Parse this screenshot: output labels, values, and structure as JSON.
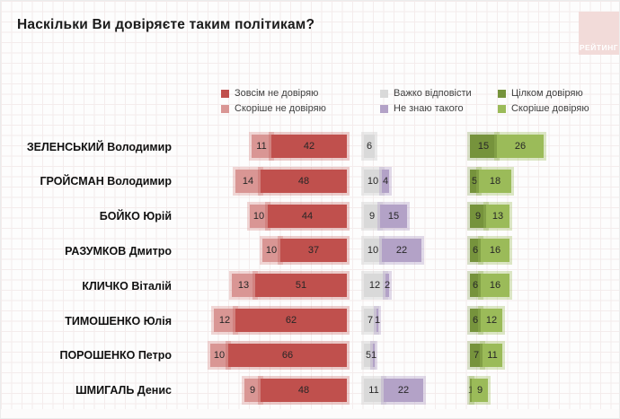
{
  "title": "Наскільки Ви довіряєте таким політикам?",
  "logo": "РЕЙТИНГ",
  "legend": [
    {
      "label": "Зовсім не довіряю",
      "color": "#c0504d"
    },
    {
      "label": "Скоріше не довіряю",
      "color": "#d99694"
    },
    {
      "label": "Важко відповісти",
      "color": "#d9d9d9"
    },
    {
      "label": "Не знаю такого",
      "color": "#b3a2c7"
    },
    {
      "label": "Цілком довіряю",
      "color": "#76933c"
    },
    {
      "label": "Скоріше довіряю",
      "color": "#9bbb59"
    }
  ],
  "chart_data": {
    "type": "bar",
    "orientation": "horizontal-diverging",
    "unit": "percent",
    "title": "Наскільки Ви довіряєте таким політикам?",
    "categories": [
      "ЗЕЛЕНСЬКИЙ Володимир",
      "ГРОЙСМАН Володимир",
      "БОЙКО Юрій",
      "РАЗУМКОВ Дмитро",
      "КЛИЧКО Віталій",
      "ТИМОШЕНКО Юлія",
      "ПОРОШЕНКО Петро",
      "ШМИГАЛЬ Денис"
    ],
    "series": [
      {
        "name": "Скоріше не довіряю",
        "color": "#d99694",
        "values": [
          11,
          14,
          10,
          10,
          13,
          12,
          10,
          9
        ]
      },
      {
        "name": "Зовсім не довіряю",
        "color": "#c0504d",
        "values": [
          42,
          48,
          44,
          37,
          51,
          62,
          66,
          48
        ]
      },
      {
        "name": "Важко відповісти",
        "color": "#d9d9d9",
        "values": [
          6,
          10,
          9,
          10,
          12,
          7,
          5,
          11
        ]
      },
      {
        "name": "Не знаю такого",
        "color": "#b3a2c7",
        "values": [
          0,
          4,
          15,
          22,
          2,
          1,
          1,
          22
        ]
      },
      {
        "name": "Цілком довіряю",
        "color": "#76933c",
        "values": [
          15,
          5,
          9,
          6,
          6,
          6,
          7,
          1
        ]
      },
      {
        "name": "Скоріше довіряю",
        "color": "#9bbb59",
        "values": [
          26,
          18,
          13,
          16,
          16,
          12,
          11,
          9
        ]
      }
    ],
    "legend_position": "top",
    "grid": "faint-background-grid",
    "value_labels": "inside-segments"
  }
}
